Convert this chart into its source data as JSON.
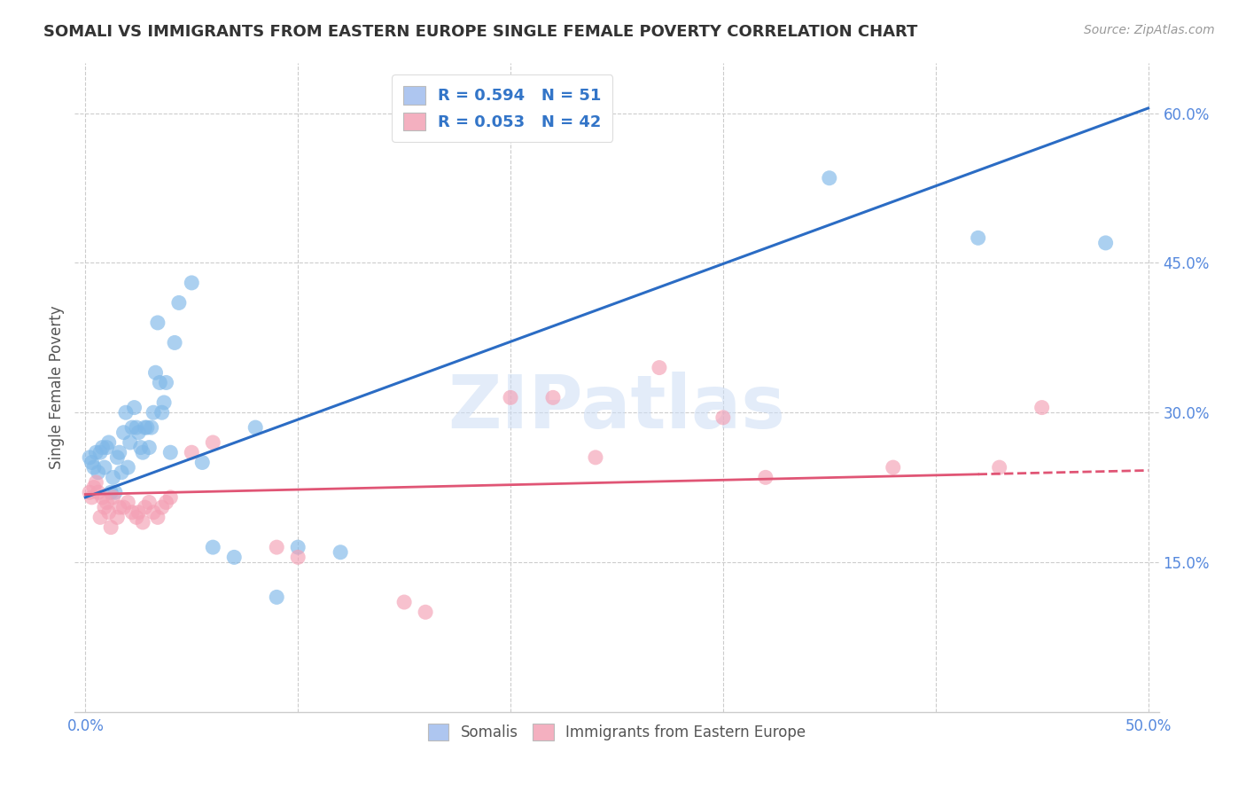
{
  "title": "SOMALI VS IMMIGRANTS FROM EASTERN EUROPE SINGLE FEMALE POVERTY CORRELATION CHART",
  "source": "Source: ZipAtlas.com",
  "ylabel": "Single Female Poverty",
  "xlim": [
    -0.005,
    0.505
  ],
  "ylim": [
    0.0,
    0.65
  ],
  "xticks": [
    0.0,
    0.1,
    0.2,
    0.3,
    0.4,
    0.5
  ],
  "xtick_labels_show": [
    "0.0%",
    "",
    "",
    "",
    "",
    "50.0%"
  ],
  "yticks_right": [
    0.15,
    0.3,
    0.45,
    0.6
  ],
  "ytick_labels_right": [
    "15.0%",
    "30.0%",
    "45.0%",
    "60.0%"
  ],
  "legend_entry1": "R = 0.594   N = 51",
  "legend_entry2": "R = 0.053   N = 42",
  "legend_labels_bottom": [
    "Somalis",
    "Immigrants from Eastern Europe"
  ],
  "blue_scatter_color": "#7fb8e8",
  "pink_scatter_color": "#f4a0b4",
  "blue_line_color": "#2b6cc4",
  "pink_line_color": "#e05575",
  "watermark": "ZIPatlas",
  "blue_line_x0": 0.0,
  "blue_line_y0": 0.215,
  "blue_line_x1": 0.5,
  "blue_line_y1": 0.605,
  "pink_line_x0": 0.0,
  "pink_line_y0": 0.218,
  "pink_line_x1": 0.5,
  "pink_line_y1": 0.242,
  "somali_x": [
    0.002,
    0.003,
    0.004,
    0.005,
    0.006,
    0.007,
    0.008,
    0.009,
    0.01,
    0.011,
    0.012,
    0.013,
    0.014,
    0.015,
    0.016,
    0.017,
    0.018,
    0.019,
    0.02,
    0.021,
    0.022,
    0.023,
    0.024,
    0.025,
    0.026,
    0.027,
    0.028,
    0.029,
    0.03,
    0.031,
    0.032,
    0.033,
    0.034,
    0.035,
    0.036,
    0.037,
    0.038,
    0.04,
    0.042,
    0.044,
    0.05,
    0.055,
    0.06,
    0.07,
    0.08,
    0.09,
    0.1,
    0.12,
    0.35,
    0.42,
    0.48
  ],
  "somali_y": [
    0.255,
    0.25,
    0.245,
    0.26,
    0.24,
    0.26,
    0.265,
    0.245,
    0.265,
    0.27,
    0.22,
    0.235,
    0.22,
    0.255,
    0.26,
    0.24,
    0.28,
    0.3,
    0.245,
    0.27,
    0.285,
    0.305,
    0.285,
    0.28,
    0.265,
    0.26,
    0.285,
    0.285,
    0.265,
    0.285,
    0.3,
    0.34,
    0.39,
    0.33,
    0.3,
    0.31,
    0.33,
    0.26,
    0.37,
    0.41,
    0.43,
    0.25,
    0.165,
    0.155,
    0.285,
    0.115,
    0.165,
    0.16,
    0.535,
    0.475,
    0.47
  ],
  "eastern_x": [
    0.002,
    0.003,
    0.004,
    0.005,
    0.006,
    0.007,
    0.008,
    0.009,
    0.01,
    0.011,
    0.012,
    0.013,
    0.015,
    0.016,
    0.018,
    0.02,
    0.022,
    0.024,
    0.025,
    0.027,
    0.028,
    0.03,
    0.032,
    0.034,
    0.036,
    0.038,
    0.04,
    0.05,
    0.06,
    0.09,
    0.1,
    0.15,
    0.16,
    0.2,
    0.22,
    0.24,
    0.27,
    0.3,
    0.32,
    0.38,
    0.43,
    0.45
  ],
  "eastern_y": [
    0.22,
    0.215,
    0.225,
    0.23,
    0.22,
    0.195,
    0.215,
    0.205,
    0.21,
    0.2,
    0.185,
    0.215,
    0.195,
    0.205,
    0.205,
    0.21,
    0.2,
    0.195,
    0.2,
    0.19,
    0.205,
    0.21,
    0.2,
    0.195,
    0.205,
    0.21,
    0.215,
    0.26,
    0.27,
    0.165,
    0.155,
    0.11,
    0.1,
    0.315,
    0.315,
    0.255,
    0.345,
    0.295,
    0.235,
    0.245,
    0.245,
    0.305
  ]
}
